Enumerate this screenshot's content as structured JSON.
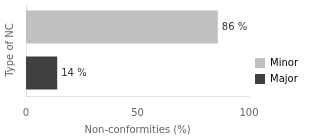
{
  "chart_data": {
    "type": "bar",
    "orientation": "horizontal",
    "categories": [
      "Minor",
      "Major"
    ],
    "values": [
      86,
      14
    ],
    "value_labels": [
      "86 %",
      "14 %"
    ],
    "data_labels": true,
    "colors": [
      "#c0c0c0",
      "#404040"
    ],
    "xlabel": "Non-conformities (%)",
    "ylabel": "Type of NC",
    "xlim": [
      0,
      100
    ],
    "xticks": [
      0,
      50,
      100
    ],
    "tick_labels": "x",
    "legend": "right",
    "grid": false
  }
}
